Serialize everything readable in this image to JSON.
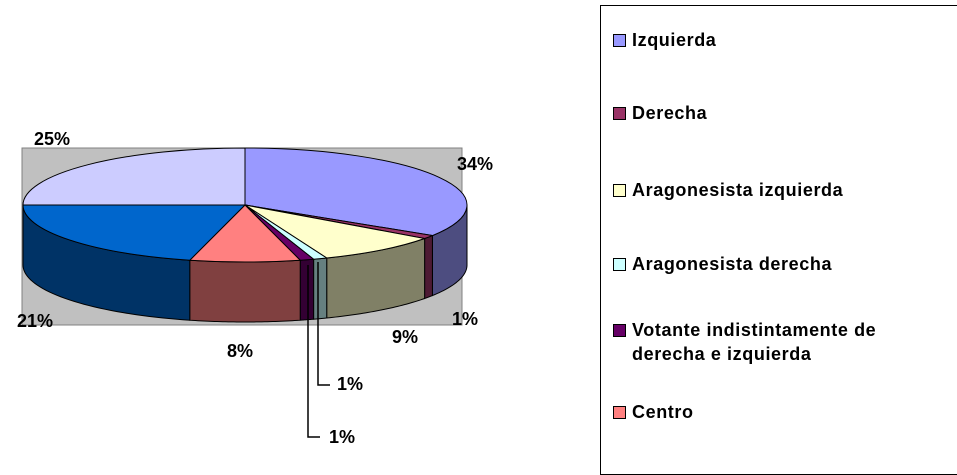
{
  "chart_data": {
    "type": "pie3d",
    "categories": [
      "Izquierda",
      "Derecha",
      "Aragonesista izquierda",
      "Aragonesista derecha",
      "Votante indistintamente de derecha e izquierda",
      "Centro",
      null,
      null
    ],
    "values": [
      34,
      1,
      9,
      1,
      1,
      8,
      21,
      25
    ],
    "value_labels": [
      "34%",
      "1%",
      "9%",
      "1%",
      "1%",
      "8%",
      "21%",
      "25%"
    ],
    "colors": [
      "#9999FF",
      "#993366",
      "#FFFFCC",
      "#CCFFFF",
      "#660066",
      "#FF8080",
      "#0066CC",
      "#CCCCFF"
    ]
  }
}
